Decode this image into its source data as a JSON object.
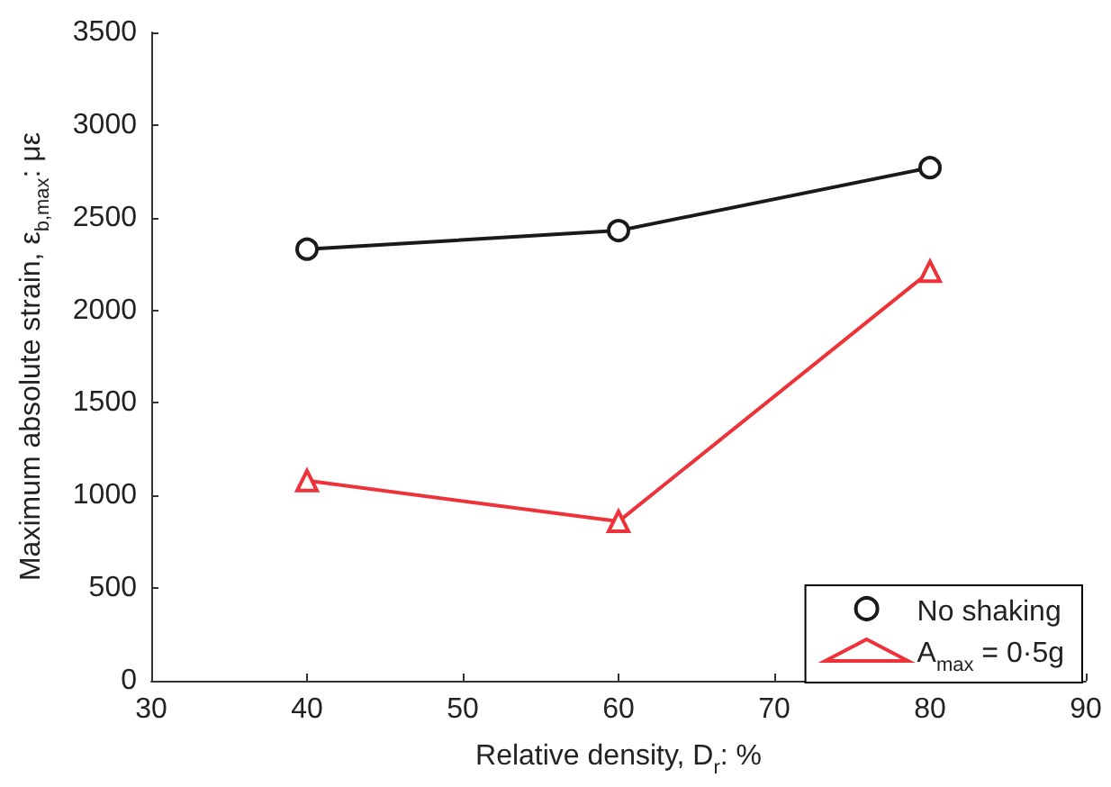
{
  "chart_data": {
    "type": "line",
    "xlabel": "Relative density, D$_{r}$: %",
    "ylabel": "Maximum absolute strain, ε$_{b,max}$: με",
    "x": [
      40,
      60,
      80
    ],
    "series": [
      {
        "name": "No shaking",
        "color": "#1a1a1a",
        "marker": "circle",
        "values": [
          2330,
          2430,
          2770
        ]
      },
      {
        "name": "A$_{max}$ = 0·5g",
        "color": "#ee3239",
        "marker": "triangle",
        "values": [
          1080,
          860,
          2210
        ]
      }
    ],
    "xlim": [
      30,
      90
    ],
    "xticks": [
      30,
      40,
      50,
      60,
      70,
      80,
      90
    ],
    "ylim": [
      0,
      3500
    ],
    "yticks": [
      0,
      500,
      1000,
      1500,
      2000,
      2500,
      3000,
      3500
    ],
    "grid": false,
    "legend": "bottom right",
    "line_style": "solid"
  }
}
